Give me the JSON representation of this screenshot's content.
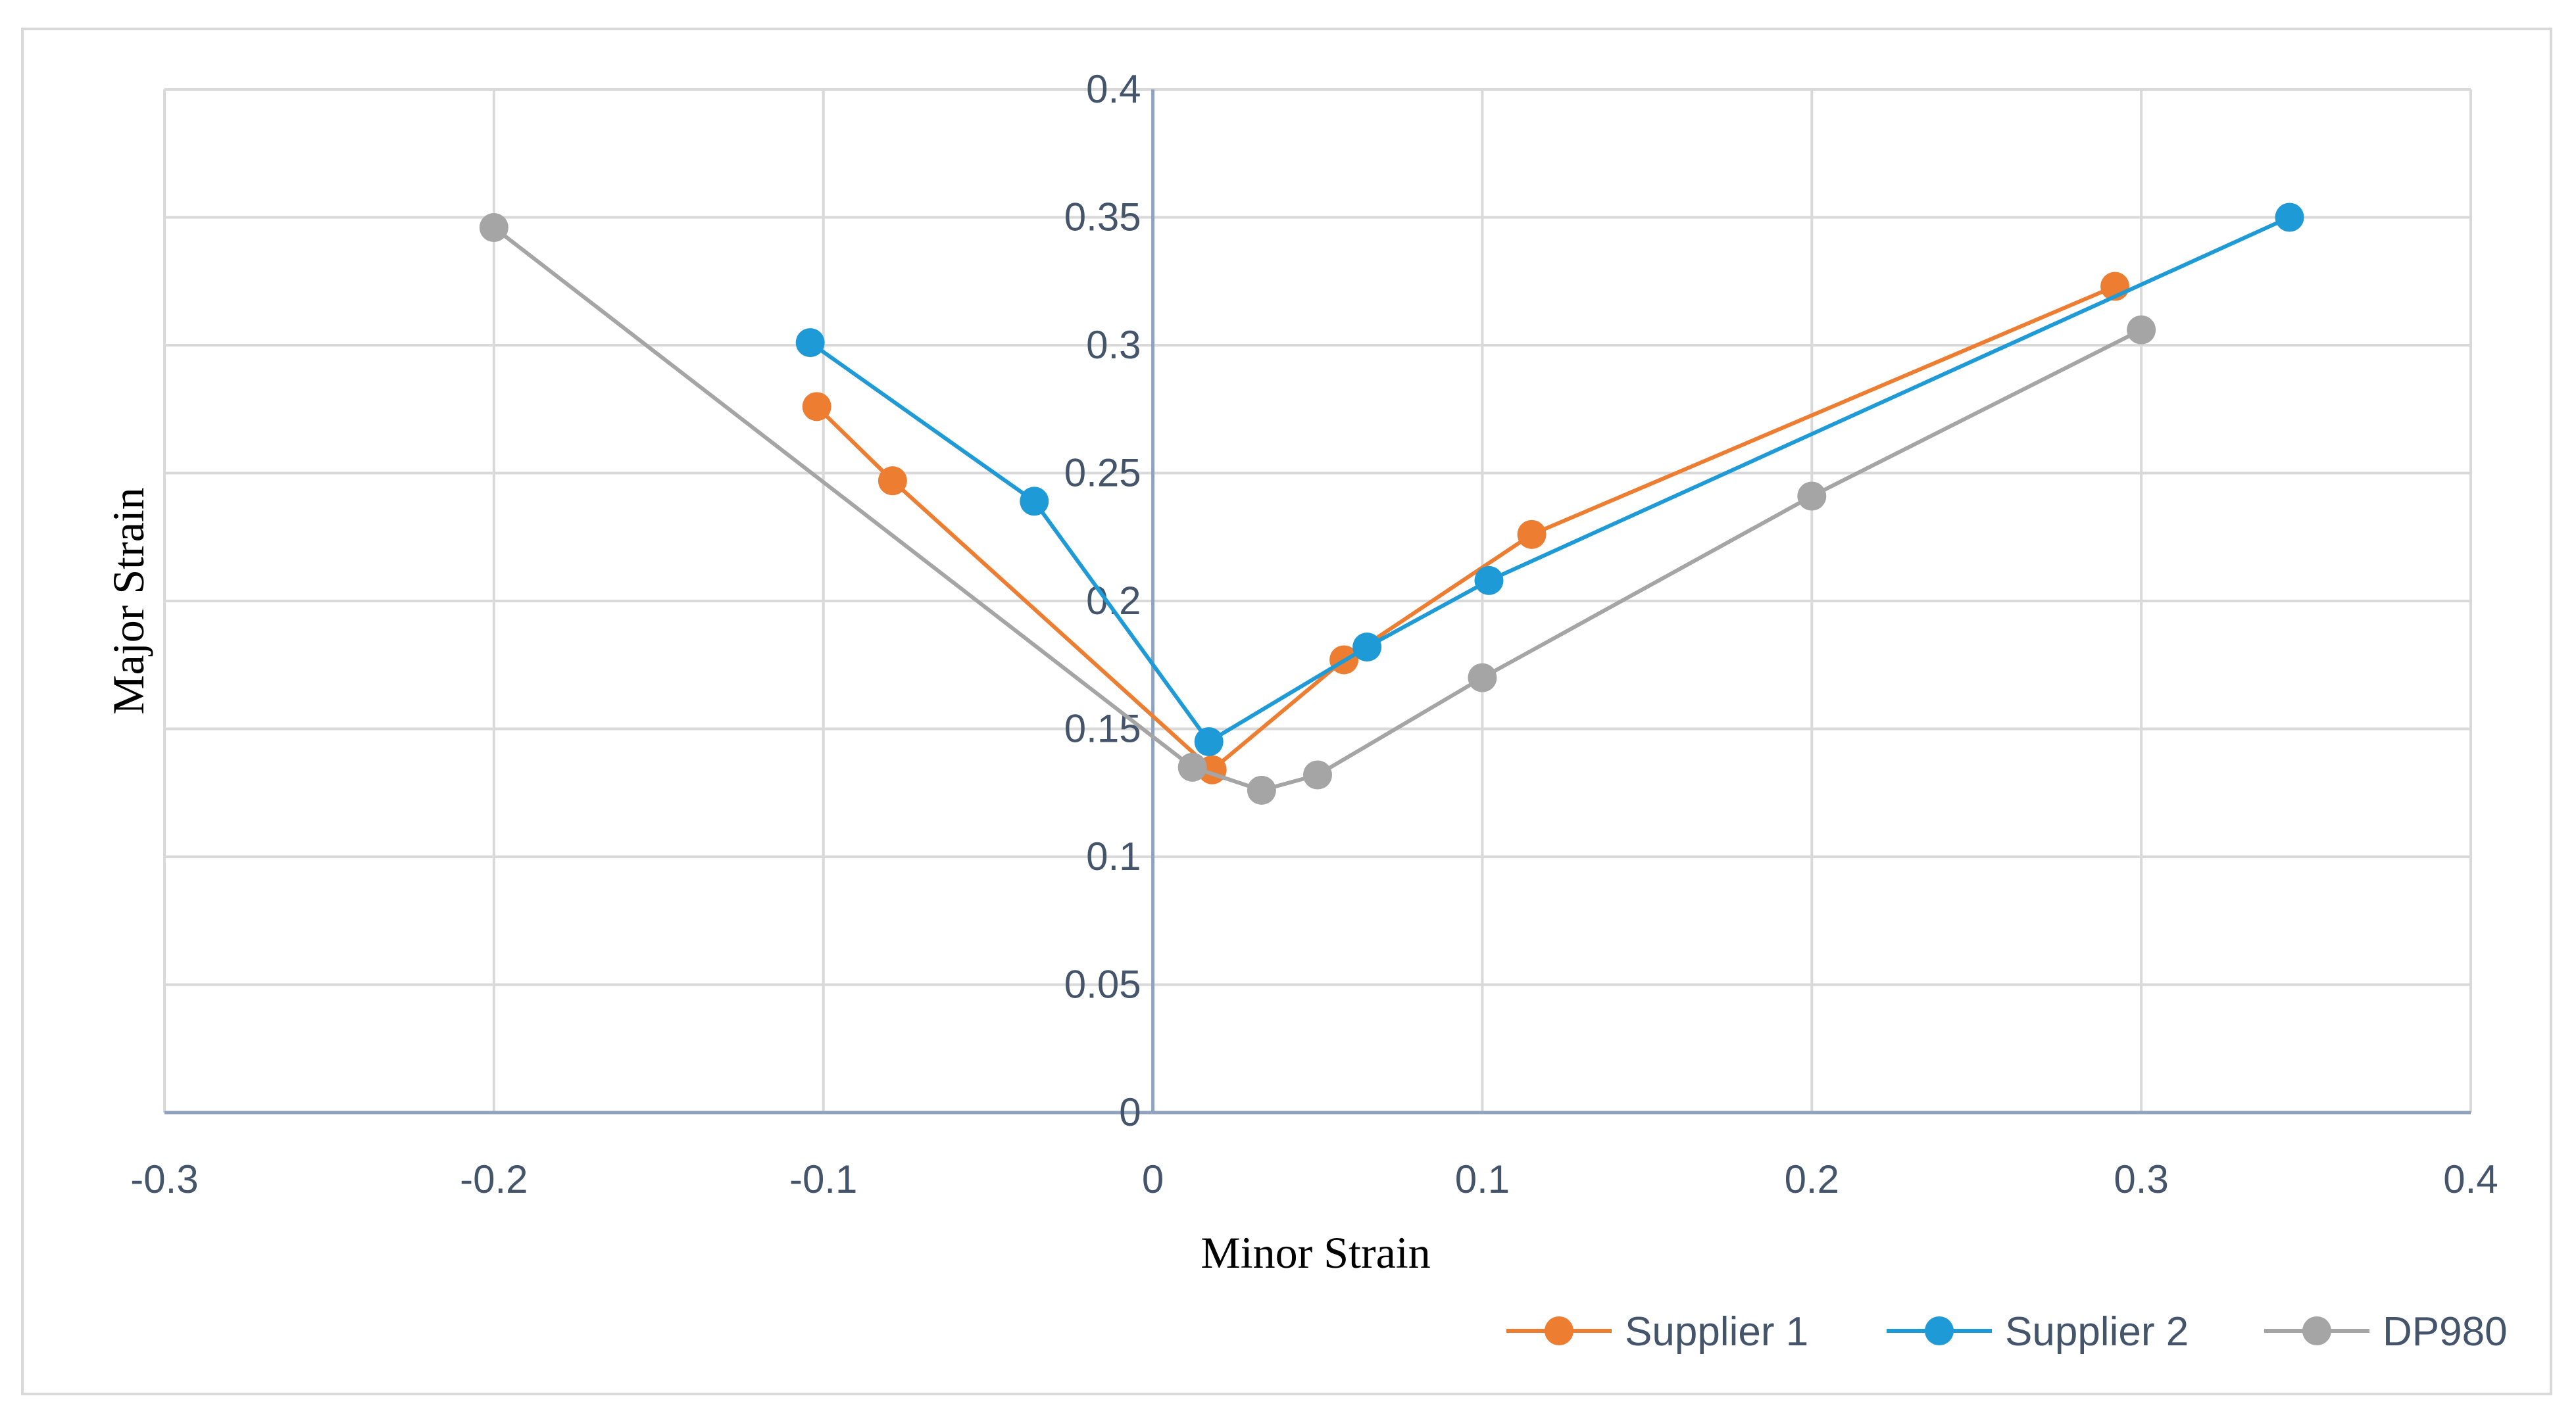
{
  "chart_data": {
    "type": "scatter",
    "mode": "lines+markers",
    "title": "",
    "xlabel": "Minor Strain",
    "ylabel": "Major Strain",
    "xlim": [
      -0.3,
      0.4
    ],
    "ylim": [
      0,
      0.4
    ],
    "x_ticks": [
      -0.3,
      -0.2,
      -0.1,
      0,
      0.1,
      0.2,
      0.3,
      0.4
    ],
    "y_ticks": [
      0,
      0.05,
      0.1,
      0.15,
      0.2,
      0.25,
      0.3,
      0.35,
      0.4
    ],
    "x_tick_labels": [
      "-0.3",
      "-0.2",
      "-0.1",
      "0",
      "0.1",
      "0.2",
      "0.3",
      "0.4"
    ],
    "y_tick_labels": [
      "0",
      "0.05",
      "0.1",
      "0.15",
      "0.2",
      "0.25",
      "0.3",
      "0.35",
      "0.4"
    ],
    "grid": true,
    "legend_position": "bottom-right",
    "series": [
      {
        "name": "Supplier 1",
        "color": "#ed7d31",
        "points": [
          {
            "x": -0.102,
            "y": 0.276
          },
          {
            "x": -0.079,
            "y": 0.247
          },
          {
            "x": 0.018,
            "y": 0.134
          },
          {
            "x": 0.058,
            "y": 0.177
          },
          {
            "x": 0.115,
            "y": 0.226
          },
          {
            "x": 0.292,
            "y": 0.323
          }
        ]
      },
      {
        "name": "Supplier 2",
        "color": "#1e9bd7",
        "points": [
          {
            "x": -0.104,
            "y": 0.301
          },
          {
            "x": -0.036,
            "y": 0.239
          },
          {
            "x": 0.017,
            "y": 0.145
          },
          {
            "x": 0.065,
            "y": 0.182
          },
          {
            "x": 0.102,
            "y": 0.208
          },
          {
            "x": 0.345,
            "y": 0.35
          }
        ]
      },
      {
        "name": "DP980",
        "color": "#a5a5a5",
        "points": [
          {
            "x": -0.2,
            "y": 0.346
          },
          {
            "x": 0.012,
            "y": 0.135
          },
          {
            "x": 0.033,
            "y": 0.126
          },
          {
            "x": 0.05,
            "y": 0.132
          },
          {
            "x": 0.1,
            "y": 0.17
          },
          {
            "x": 0.2,
            "y": 0.241
          },
          {
            "x": 0.3,
            "y": 0.306
          }
        ]
      }
    ]
  },
  "colors": {
    "grid": "#d9d9d9",
    "zero_axis": "#8fa3bf",
    "tick_text": "#44546a",
    "frame": "#d9d9d9"
  }
}
